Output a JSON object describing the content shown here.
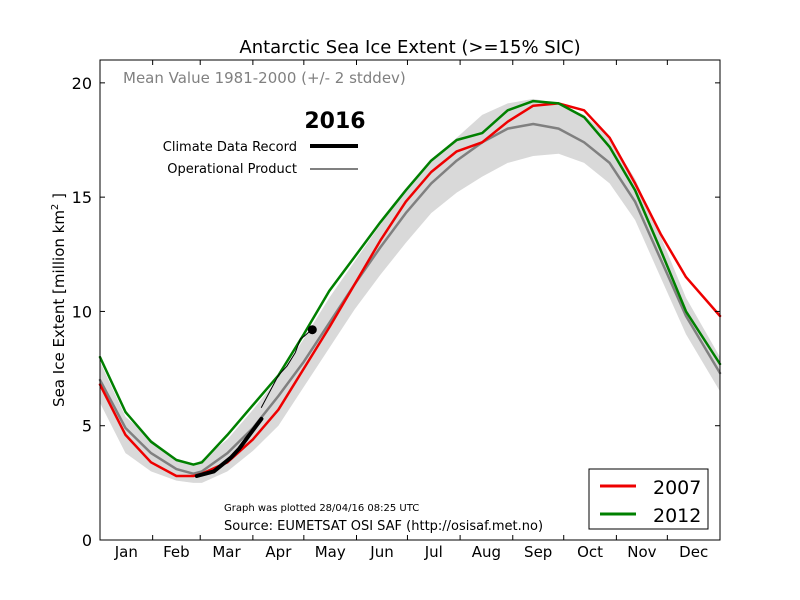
{
  "chart_data": {
    "type": "line",
    "title": "Antarctic Sea Ice Extent (>=15% SIC)",
    "xlabel": "",
    "ylabel": "Sea Ice Extent [million km",
    "ylabel_sup": "2",
    "ylabel_end": " ]",
    "xlim": [
      0,
      365
    ],
    "ylim": [
      0,
      21
    ],
    "yticks": [
      0,
      5,
      10,
      15,
      20
    ],
    "month_labels": [
      "Jan",
      "Feb",
      "Mar",
      "Apr",
      "May",
      "Jun",
      "Jul",
      "Aug",
      "Sep",
      "Oct",
      "Nov",
      "Dec"
    ],
    "mean_label": "Mean Value 1981-2000 (+/- 2 stddev)",
    "year_title": "2016",
    "climate_record_label": "Climate Data Record",
    "operational_label": "Operational Product",
    "plot_note": "Graph was plotted 28/04/16 08:25 UTC",
    "source": "Source: EUMETSAT OSI SAF (http://osisaf.met.no)",
    "band_x": [
      0,
      15,
      30,
      45,
      55,
      60,
      75,
      90,
      105,
      120,
      135,
      150,
      165,
      180,
      195,
      210,
      225,
      240,
      255,
      270,
      285,
      300,
      315,
      330,
      345,
      365
    ],
    "band_lo": [
      6.0,
      3.8,
      3.0,
      2.6,
      2.5,
      2.5,
      3.0,
      3.9,
      5.0,
      6.7,
      8.4,
      10.1,
      11.6,
      13.0,
      14.3,
      15.2,
      15.9,
      16.5,
      16.8,
      16.9,
      16.5,
      15.6,
      14.0,
      11.5,
      9.0,
      6.5
    ],
    "band_hi": [
      7.8,
      5.4,
      4.4,
      3.5,
      3.3,
      3.5,
      4.4,
      5.7,
      7.1,
      8.8,
      10.6,
      12.2,
      13.8,
      15.3,
      16.6,
      17.6,
      18.6,
      19.1,
      19.3,
      19.1,
      18.6,
      17.6,
      15.8,
      13.3,
      10.6,
      8.0
    ],
    "series": [
      {
        "name": "Mean Value 1981-2000",
        "color": "#808080",
        "x": [
          0,
          15,
          30,
          45,
          55,
          60,
          75,
          90,
          105,
          120,
          135,
          150,
          165,
          180,
          195,
          210,
          225,
          240,
          255,
          270,
          285,
          300,
          315,
          330,
          345,
          365
        ],
        "values": [
          7.0,
          4.9,
          3.8,
          3.1,
          2.9,
          3.0,
          3.8,
          4.9,
          6.3,
          7.8,
          9.5,
          11.2,
          12.8,
          14.3,
          15.6,
          16.6,
          17.4,
          18.0,
          18.2,
          18.0,
          17.4,
          16.5,
          14.8,
          12.3,
          9.8,
          7.3
        ]
      },
      {
        "name": "2007",
        "color": "#ee0000",
        "x": [
          0,
          15,
          30,
          45,
          55,
          60,
          75,
          90,
          105,
          120,
          135,
          150,
          165,
          180,
          195,
          210,
          225,
          240,
          255,
          270,
          285,
          300,
          315,
          330,
          345,
          365
        ],
        "values": [
          6.8,
          4.6,
          3.4,
          2.8,
          2.8,
          2.9,
          3.4,
          4.4,
          5.7,
          7.5,
          9.3,
          11.2,
          13.1,
          14.8,
          16.1,
          17.0,
          17.4,
          18.3,
          19.0,
          19.1,
          18.8,
          17.6,
          15.6,
          13.4,
          11.5,
          9.8
        ]
      },
      {
        "name": "2012",
        "color": "#008000",
        "x": [
          0,
          15,
          30,
          45,
          55,
          60,
          75,
          90,
          105,
          120,
          135,
          150,
          165,
          180,
          195,
          210,
          225,
          240,
          255,
          270,
          285,
          300,
          315,
          330,
          345,
          365
        ],
        "values": [
          8.0,
          5.6,
          4.3,
          3.5,
          3.3,
          3.4,
          4.6,
          5.9,
          7.2,
          9.0,
          10.9,
          12.4,
          13.9,
          15.3,
          16.6,
          17.5,
          17.8,
          18.8,
          19.2,
          19.1,
          18.5,
          17.2,
          15.3,
          12.7,
          10.0,
          7.7
        ]
      },
      {
        "name": "Climate Data Record 2016",
        "color": "#000000",
        "x": [
          57,
          62,
          67,
          72,
          77,
          82,
          87,
          92,
          95
        ],
        "values": [
          2.8,
          2.9,
          3.0,
          3.3,
          3.6,
          4.0,
          4.5,
          5.0,
          5.3
        ]
      },
      {
        "name": "Operational Product 2016",
        "color": "#000000",
        "x": [
          95,
          100,
          105,
          110,
          115,
          118,
          120,
          123,
          125
        ],
        "values": [
          5.8,
          6.5,
          7.2,
          7.6,
          8.2,
          8.8,
          8.9,
          9.1,
          9.2
        ]
      }
    ],
    "legend": [
      "2007",
      "2012"
    ],
    "legend_position": "bottom-right",
    "grid": false
  }
}
